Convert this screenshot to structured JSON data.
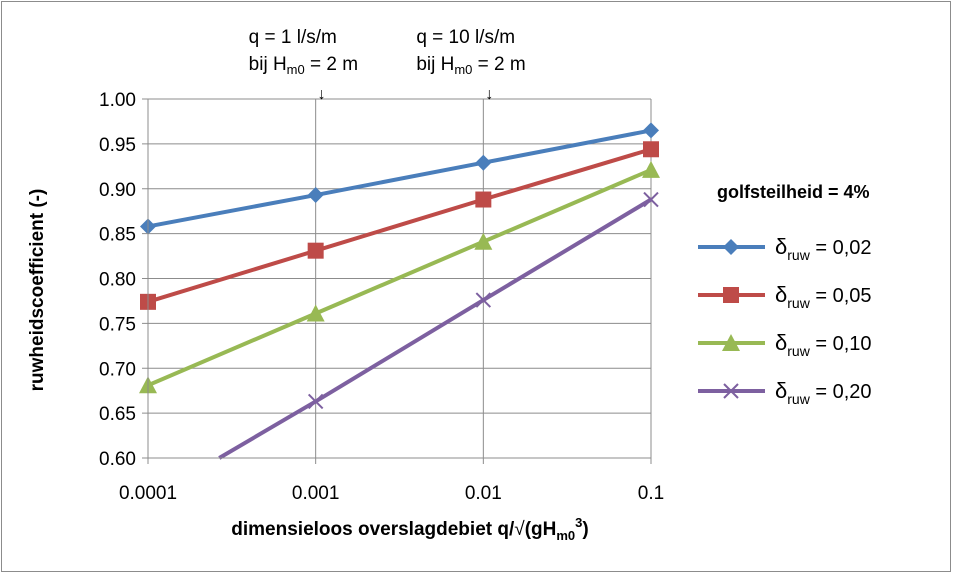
{
  "chart_data": {
    "type": "line",
    "x_scale": "log",
    "x": [
      0.0001,
      0.001,
      0.01,
      0.1
    ],
    "x_tick_labels": [
      "0.0001",
      "0.001",
      "0.01",
      "0.1"
    ],
    "ylim": [
      0.6,
      1.0
    ],
    "y_ticks": [
      0.6,
      0.65,
      0.7,
      0.75,
      0.8,
      0.85,
      0.9,
      0.95,
      1.0
    ],
    "y_tick_labels": [
      "0.60",
      "0.65",
      "0.70",
      "0.75",
      "0.80",
      "0.85",
      "0.90",
      "0.95",
      "1.00"
    ],
    "ylabel": "ruwheidscoefficient (-)",
    "xlabel": {
      "main": "dimensieloos overslagdebiet q/",
      "sqrt": "√",
      "open": "(gH",
      "sub": "m0",
      "sup": "3",
      "close": ")"
    },
    "grid": true,
    "legend_position": "right",
    "legend_title": "golfsteilheid = 4%",
    "series": [
      {
        "name": "δruw = 0,02",
        "symbol": "δ",
        "sub": "ruw",
        "value_text": " = 0,02",
        "color": "#4a7ebb",
        "marker": "diamond",
        "x": [
          0.0001,
          0.001,
          0.01,
          0.1
        ],
        "values": [
          0.858,
          0.893,
          0.929,
          0.965
        ]
      },
      {
        "name": "δruw = 0,05",
        "symbol": "δ",
        "sub": "ruw",
        "value_text": " = 0,05",
        "color": "#be4b48",
        "marker": "square",
        "x": [
          0.0001,
          0.001,
          0.01,
          0.1
        ],
        "values": [
          0.774,
          0.831,
          0.888,
          0.944
        ]
      },
      {
        "name": "δruw = 0,10",
        "symbol": "δ",
        "sub": "ruw",
        "value_text": " = 0,10",
        "color": "#98b954",
        "marker": "triangle",
        "x": [
          0.0001,
          0.001,
          0.01,
          0.1
        ],
        "values": [
          0.681,
          0.761,
          0.841,
          0.921
        ]
      },
      {
        "name": "δruw = 0,20",
        "symbol": "δ",
        "sub": "ruw",
        "value_text": " = 0,20",
        "color": "#7d60a0",
        "marker": "x",
        "x": [
          0.000266,
          0.001,
          0.01,
          0.1
        ],
        "values": [
          0.6,
          0.663,
          0.776,
          0.888
        ]
      }
    ],
    "annotations": [
      {
        "x": 0.001,
        "line1": "q = 1 l/s/m",
        "line2_prefix": "bij H",
        "line2_sub": "m0",
        "line2_suffix": " = 2 m",
        "arrow": "↓"
      },
      {
        "x": 0.01,
        "line1": "q = 10 l/s/m",
        "line2_prefix": "bij H",
        "line2_sub": "m0",
        "line2_suffix": " = 2 m",
        "arrow": "↓"
      }
    ]
  }
}
